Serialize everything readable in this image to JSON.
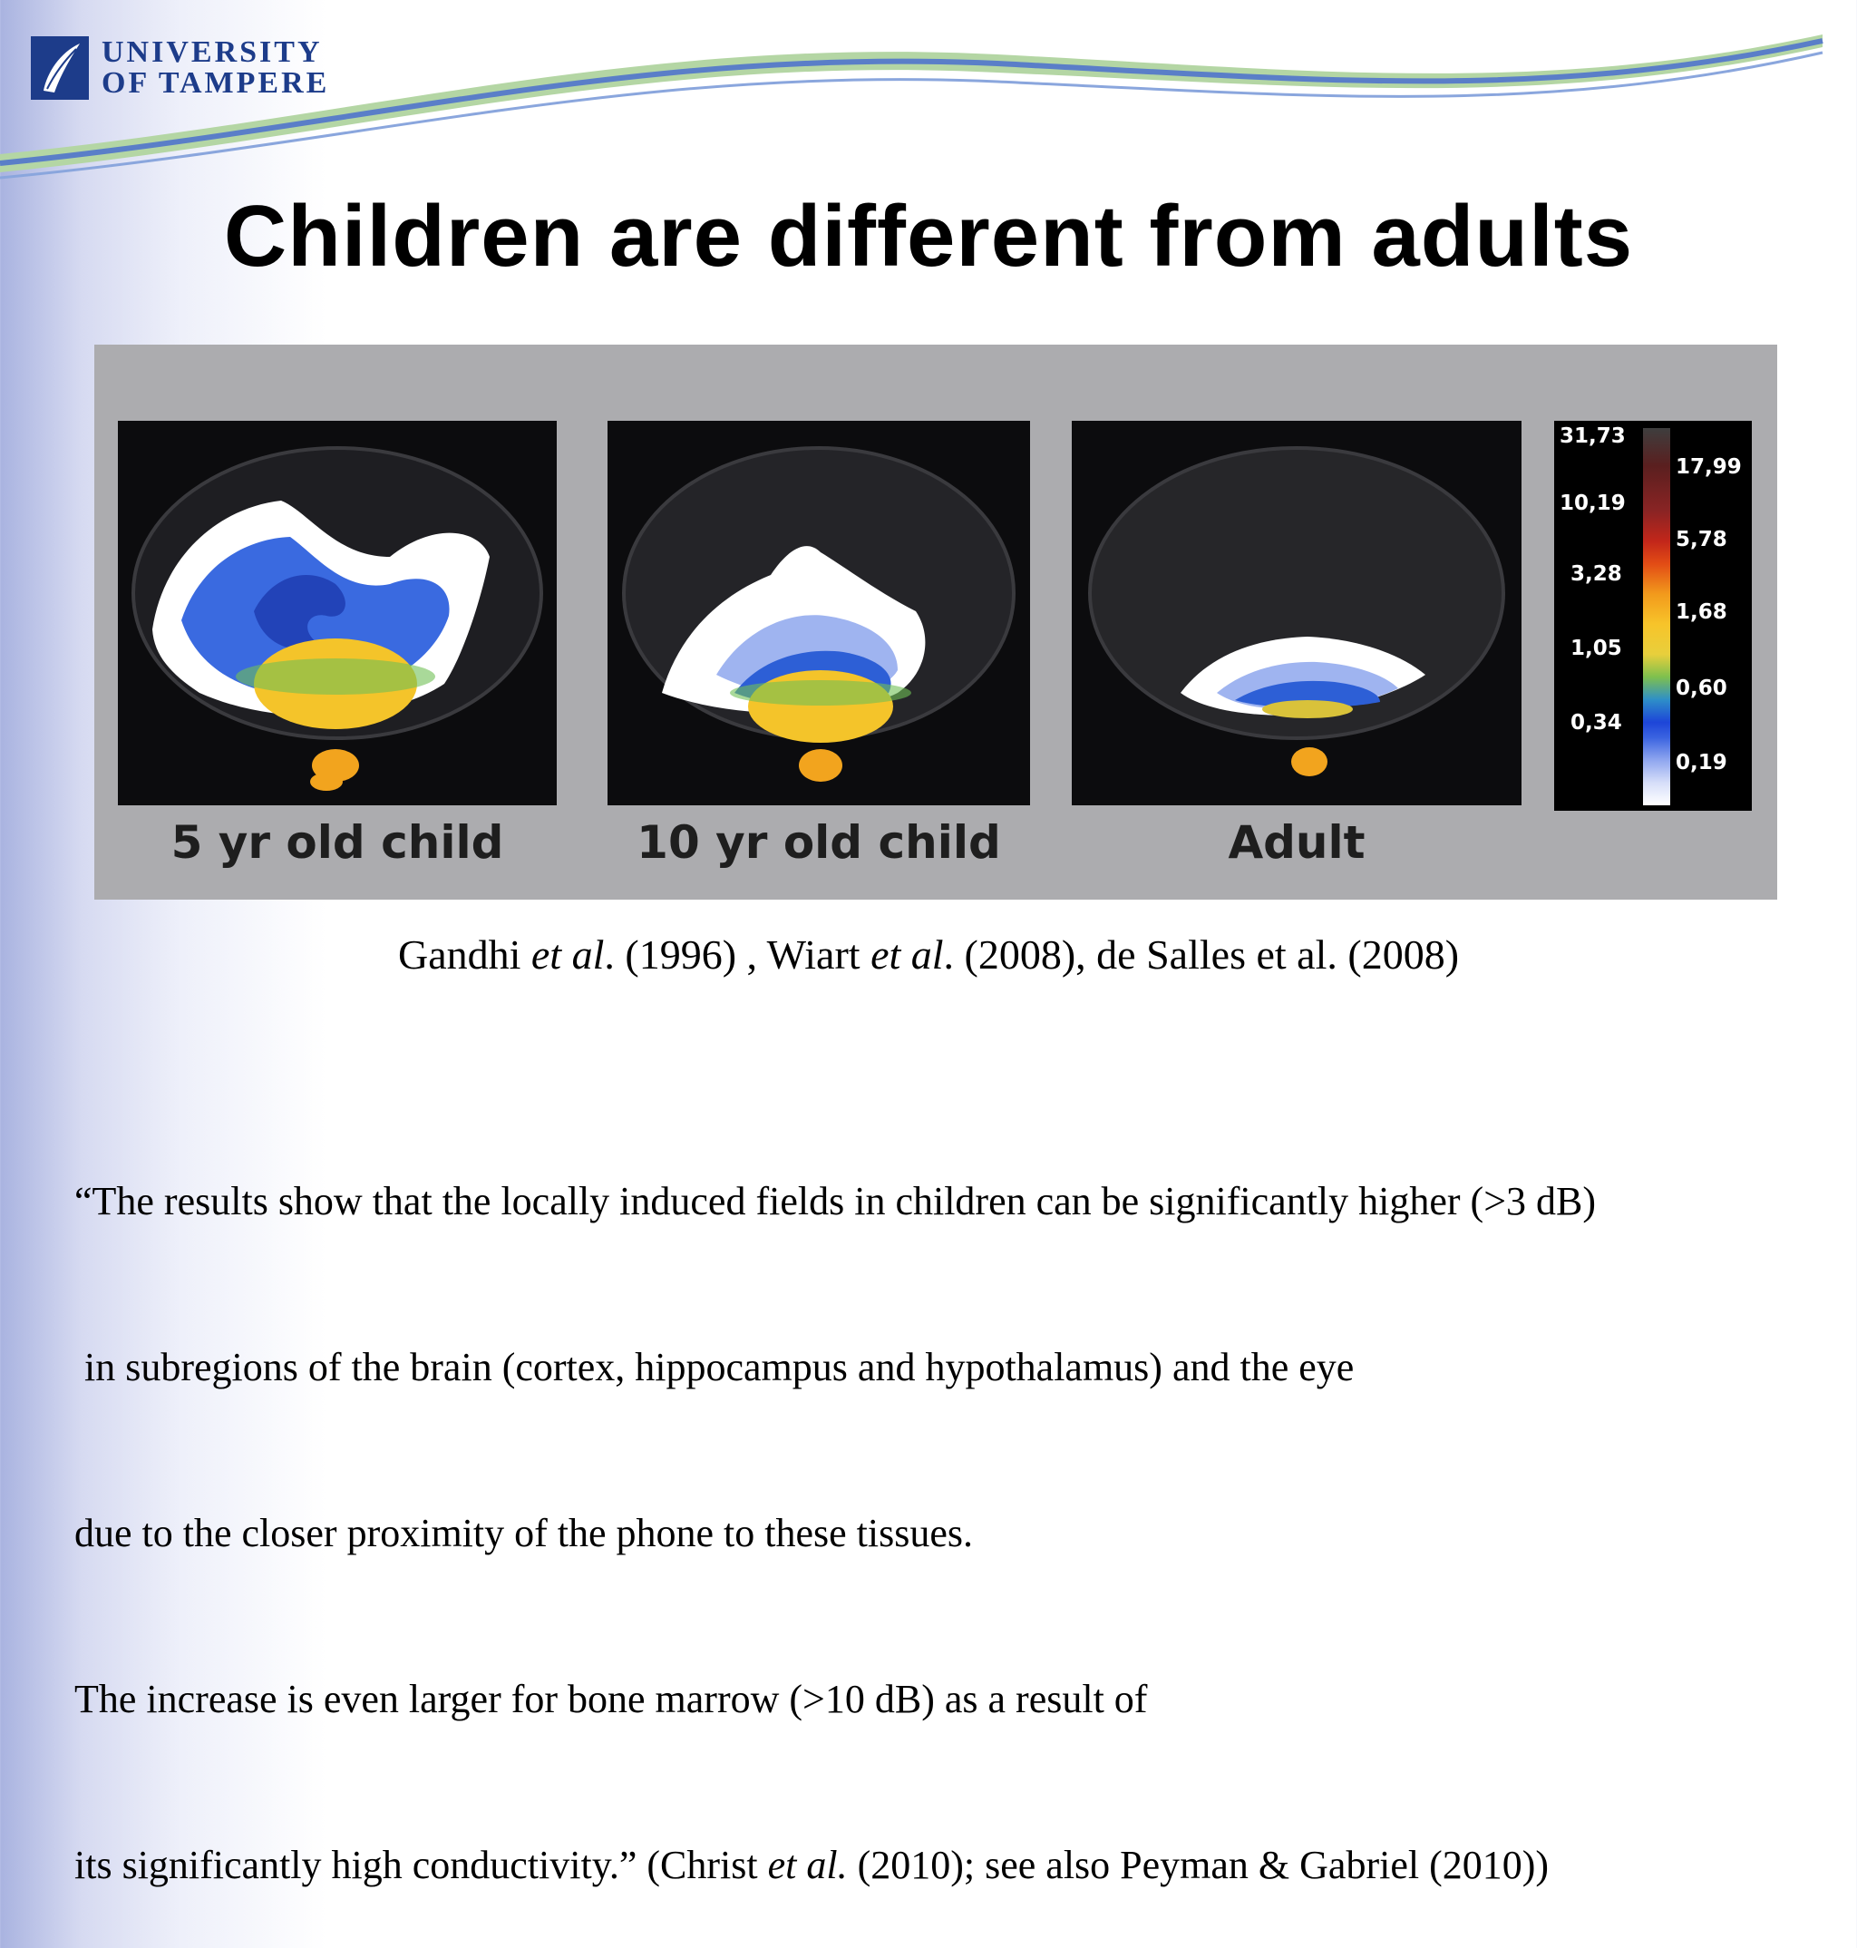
{
  "header": {
    "logo_line1": "UNIVERSITY",
    "logo_line2": "OF TAMPERE",
    "logo_icon": "leaf-emblem-icon",
    "brand_color": "#1d3c8a"
  },
  "title": "Children are different from adults",
  "figure": {
    "panels": [
      {
        "label": "5 yr old child"
      },
      {
        "label": "10 yr old child"
      },
      {
        "label": "Adult"
      }
    ],
    "colorbar": {
      "left_ticks": [
        "31,73",
        "10,19",
        "3,28",
        "1,05",
        "0,34"
      ],
      "right_ticks": [
        "17,99",
        "5,78",
        "1,68",
        "0,60",
        "0,19"
      ]
    }
  },
  "citation": {
    "p1": "Gandhi ",
    "p1_it": "et al",
    "p2": ". (1996) , Wiart ",
    "p2_it": "et al",
    "p3": ". (2008), de Salles et al. (2008)"
  },
  "quote": {
    "line1": "“The results show that the locally induced fields in children can be significantly higher (>3 dB)",
    "line2": " in subregions of the brain (cortex, hippocampus and hypothalamus) and the eye",
    "line3": "due to the closer proximity of the phone to these tissues.",
    "line4": "The increase is even larger for bone marrow (>10 dB) as a result of",
    "line5_a": "its significantly high conductivity.” (Christ ",
    "line5_it": "et al.",
    "line5_b": " (2010); see also Peyman & Gabriel (2010))"
  }
}
